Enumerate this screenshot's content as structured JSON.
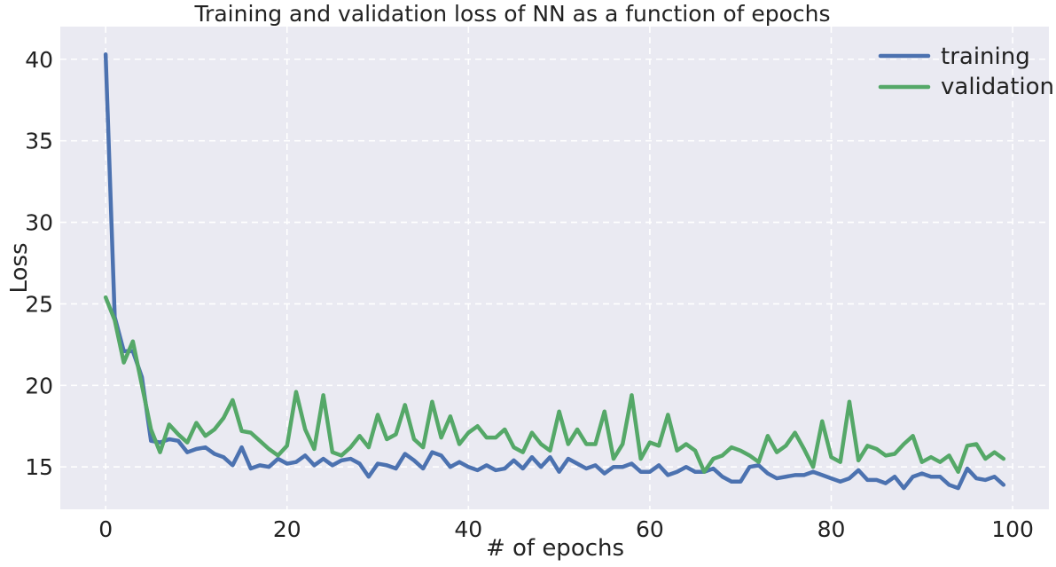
{
  "chart_data": {
    "type": "line",
    "title": "Training and validation loss of NN as a function of epochs",
    "xlabel": "# of epochs",
    "ylabel": "Loss",
    "xlim": [
      -5,
      104
    ],
    "ylim": [
      12.4,
      42.0
    ],
    "xticks": [
      0,
      20,
      40,
      60,
      80,
      100
    ],
    "yticks": [
      15,
      20,
      25,
      30,
      35,
      40
    ],
    "grid": true,
    "grid_style": "dashed",
    "background": "#EAEAF2",
    "legend_position": "top-right",
    "series": [
      {
        "name": "training",
        "color": "#4C72B0",
        "values": [
          40.3,
          24.2,
          22.1,
          22.1,
          20.5,
          16.6,
          16.5,
          16.7,
          16.6,
          15.9,
          16.1,
          16.2,
          15.8,
          15.6,
          15.1,
          16.2,
          14.9,
          15.1,
          15.0,
          15.5,
          15.2,
          15.3,
          15.7,
          15.1,
          15.5,
          15.1,
          15.4,
          15.5,
          15.2,
          14.4,
          15.2,
          15.1,
          14.9,
          15.8,
          15.4,
          14.9,
          15.9,
          15.7,
          15.0,
          15.3,
          15.0,
          14.8,
          15.1,
          14.8,
          14.9,
          15.4,
          14.9,
          15.6,
          15.0,
          15.6,
          14.7,
          15.5,
          15.2,
          14.9,
          15.1,
          14.6,
          15.0,
          15.0,
          15.2,
          14.7,
          14.7,
          15.1,
          14.5,
          14.7,
          15.0,
          14.7,
          14.7,
          14.9,
          14.4,
          14.1,
          14.1,
          15.0,
          15.1,
          14.6,
          14.3,
          14.4,
          14.5,
          14.5,
          14.7,
          14.5,
          14.3,
          14.1,
          14.3,
          14.8,
          14.2,
          14.2,
          14.0,
          14.4,
          13.7,
          14.4,
          14.6,
          14.4,
          14.4,
          13.9,
          13.7,
          14.9,
          14.3,
          14.2,
          14.4,
          13.9
        ]
      },
      {
        "name": "validation",
        "color": "#55A868",
        "values": [
          25.4,
          24.0,
          21.4,
          22.7,
          20.0,
          17.3,
          15.9,
          17.6,
          17.0,
          16.5,
          17.7,
          16.9,
          17.3,
          18.0,
          19.1,
          17.2,
          17.1,
          16.6,
          16.1,
          15.7,
          16.3,
          19.6,
          17.3,
          16.1,
          19.4,
          15.9,
          15.7,
          16.2,
          16.9,
          16.2,
          18.2,
          16.7,
          17.0,
          18.8,
          16.7,
          16.2,
          19.0,
          16.8,
          18.1,
          16.4,
          17.1,
          17.5,
          16.8,
          16.8,
          17.3,
          16.2,
          15.9,
          17.1,
          16.4,
          16.0,
          18.4,
          16.4,
          17.3,
          16.4,
          16.4,
          18.4,
          15.5,
          16.4,
          19.4,
          15.5,
          16.5,
          16.3,
          18.2,
          16.0,
          16.4,
          16.0,
          14.7,
          15.5,
          15.7,
          16.2,
          16.0,
          15.7,
          15.3,
          16.9,
          15.9,
          16.3,
          17.1,
          16.1,
          15.0,
          17.8,
          15.6,
          15.3,
          19.0,
          15.4,
          16.3,
          16.1,
          15.7,
          15.8,
          16.4,
          16.9,
          15.3,
          15.6,
          15.3,
          15.7,
          14.7,
          16.3,
          16.4,
          15.5,
          15.9,
          15.5
        ]
      }
    ]
  }
}
